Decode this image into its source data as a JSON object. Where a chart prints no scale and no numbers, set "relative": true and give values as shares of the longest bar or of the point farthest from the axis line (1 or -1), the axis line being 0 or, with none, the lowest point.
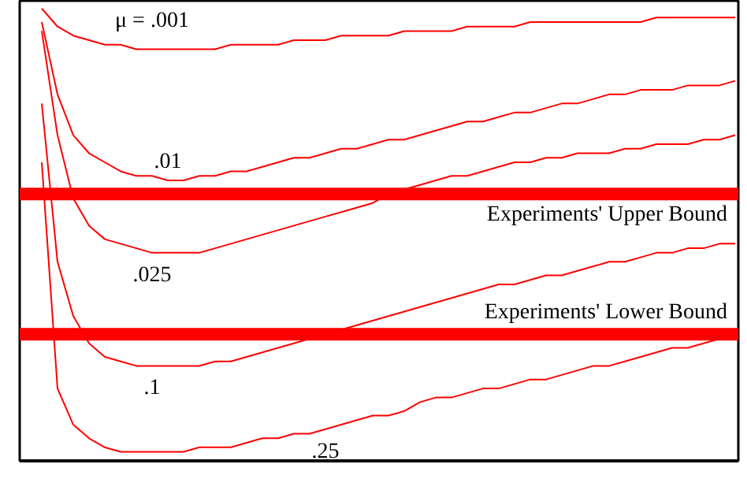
{
  "chart_data": {
    "type": "line",
    "relative": true,
    "categories": [
      null,
      null,
      null,
      null,
      null,
      null,
      null,
      null,
      null,
      null,
      null,
      null,
      null,
      null,
      null,
      null,
      null,
      null,
      null,
      null,
      null,
      null,
      null,
      null,
      null,
      null,
      null,
      null,
      null,
      null,
      null,
      null,
      null,
      null,
      null,
      null,
      null,
      null,
      null,
      null,
      null,
      null,
      null,
      null,
      null
    ],
    "series": [
      {
        "name": "μ = .001",
        "color": "#ff0000",
        "values": [
          1.0,
          0.96,
          0.94,
          0.93,
          0.92,
          0.92,
          0.91,
          0.91,
          0.91,
          0.91,
          0.91,
          0.91,
          0.92,
          0.92,
          0.92,
          0.92,
          0.93,
          0.93,
          0.93,
          0.94,
          0.94,
          0.94,
          0.94,
          0.95,
          0.95,
          0.95,
          0.95,
          0.96,
          0.96,
          0.96,
          0.96,
          0.97,
          0.97,
          0.97,
          0.97,
          0.97,
          0.97,
          0.97,
          0.97,
          0.98,
          0.98,
          0.98,
          0.98,
          0.98,
          0.98
        ]
      },
      {
        "name": ".01",
        "color": "#ff0000",
        "values": [
          0.97,
          0.81,
          0.72,
          0.68,
          0.66,
          0.64,
          0.63,
          0.63,
          0.62,
          0.62,
          0.63,
          0.63,
          0.64,
          0.64,
          0.65,
          0.66,
          0.67,
          0.67,
          0.68,
          0.69,
          0.69,
          0.7,
          0.71,
          0.71,
          0.72,
          0.73,
          0.74,
          0.75,
          0.75,
          0.76,
          0.77,
          0.77,
          0.78,
          0.79,
          0.79,
          0.8,
          0.81,
          0.81,
          0.82,
          0.82,
          0.82,
          0.83,
          0.83,
          0.83,
          0.84
        ]
      },
      {
        "name": ".025",
        "color": "#ff0000",
        "values": [
          0.95,
          0.72,
          0.58,
          0.52,
          0.49,
          0.48,
          0.47,
          0.46,
          0.46,
          0.46,
          0.46,
          0.47,
          0.48,
          0.49,
          0.5,
          0.51,
          0.52,
          0.53,
          0.54,
          0.55,
          0.56,
          0.57,
          0.59,
          0.6,
          0.61,
          0.62,
          0.63,
          0.63,
          0.64,
          0.65,
          0.66,
          0.66,
          0.67,
          0.67,
          0.68,
          0.68,
          0.68,
          0.69,
          0.69,
          0.7,
          0.7,
          0.7,
          0.71,
          0.71,
          0.72
        ]
      },
      {
        "name": ".1",
        "color": "#ff0000",
        "values": [
          0.79,
          0.44,
          0.32,
          0.26,
          0.23,
          0.22,
          0.21,
          0.21,
          0.21,
          0.21,
          0.21,
          0.22,
          0.22,
          0.23,
          0.24,
          0.25,
          0.26,
          0.27,
          0.28,
          0.29,
          0.3,
          0.31,
          0.32,
          0.33,
          0.34,
          0.35,
          0.36,
          0.37,
          0.38,
          0.39,
          0.39,
          0.4,
          0.41,
          0.41,
          0.42,
          0.43,
          0.44,
          0.44,
          0.45,
          0.46,
          0.46,
          0.47,
          0.47,
          0.48,
          0.48
        ]
      },
      {
        "name": ".25",
        "color": "#ff0000",
        "values": [
          0.66,
          0.16,
          0.08,
          0.05,
          0.03,
          0.02,
          0.02,
          0.02,
          0.02,
          0.02,
          0.03,
          0.03,
          0.03,
          0.04,
          0.05,
          0.05,
          0.06,
          0.06,
          0.07,
          0.08,
          0.09,
          0.1,
          0.1,
          0.11,
          0.13,
          0.14,
          0.14,
          0.15,
          0.16,
          0.16,
          0.17,
          0.18,
          0.18,
          0.19,
          0.2,
          0.21,
          0.21,
          0.22,
          0.23,
          0.24,
          0.25,
          0.25,
          0.26,
          0.27,
          0.28
        ]
      }
    ],
    "ref_lines": [
      {
        "axis": "y",
        "value": 0.59,
        "label": "Experiments' Upper Bound",
        "color": "#ff0000"
      },
      {
        "axis": "y",
        "value": 0.28,
        "label": "Experiments' Lower Bound",
        "color": "#ff0000"
      }
    ]
  }
}
